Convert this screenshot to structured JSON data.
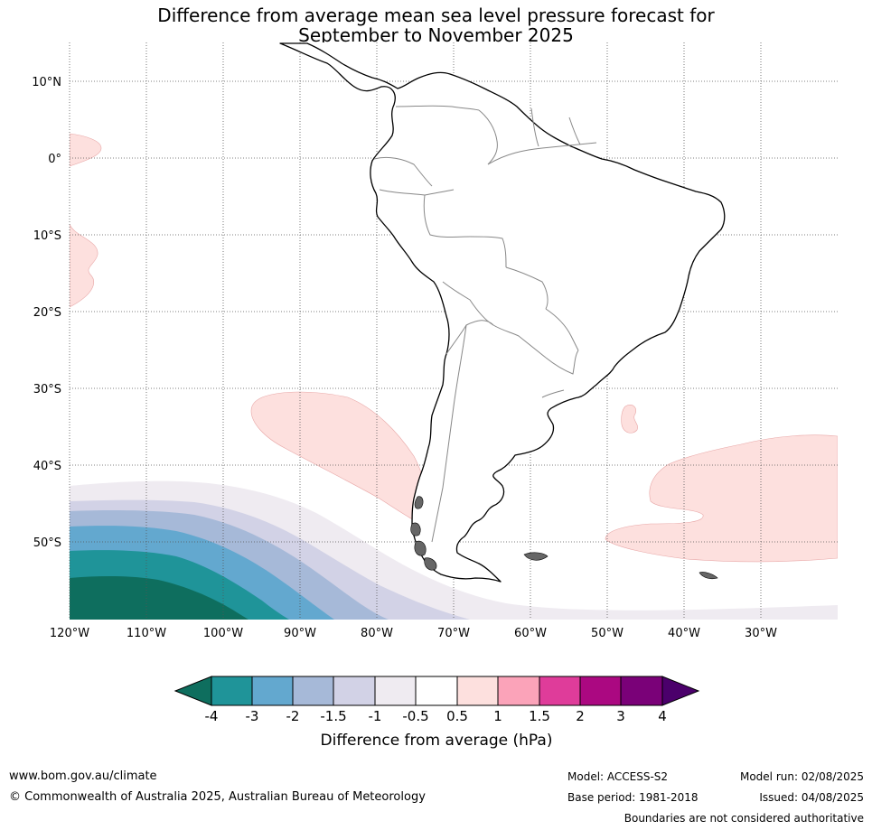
{
  "title": {
    "line1": "Difference from average mean sea level pressure forecast for",
    "line2": "September to November 2025"
  },
  "map": {
    "lat_labels": [
      "10°N",
      "0°",
      "10°S",
      "20°S",
      "30°S",
      "40°S",
      "50°S"
    ],
    "lon_labels": [
      "120°W",
      "110°W",
      "100°W",
      "90°W",
      "80°W",
      "70°W",
      "60°W",
      "50°W",
      "40°W",
      "30°W"
    ]
  },
  "colorbar": {
    "label": "Difference from average (hPa)",
    "ticks": [
      "-4",
      "-3",
      "-2",
      "-1.5",
      "-1",
      "-0.5",
      "0.5",
      "1",
      "1.5",
      "2",
      "3",
      "4"
    ],
    "colors": [
      "#0e6e5e",
      "#1f9499",
      "#63a8cf",
      "#a6b9d8",
      "#d2d2e6",
      "#efebf1",
      "#ffffff",
      "#fde0de",
      "#fba3b9",
      "#df3c9a",
      "#ab0881",
      "#7a0178",
      "#4b006b"
    ]
  },
  "footer": {
    "website": "www.bom.gov.au/climate",
    "copyright": "© Commonwealth of Australia 2025, Australian Bureau of Meteorology",
    "model": "Model: ACCESS-S2",
    "base_period": "Base period: 1981-2018",
    "model_run": "Model run: 02/08/2025",
    "issued": "Issued: 04/08/2025",
    "boundaries": "Boundaries are not considered authoritative"
  }
}
